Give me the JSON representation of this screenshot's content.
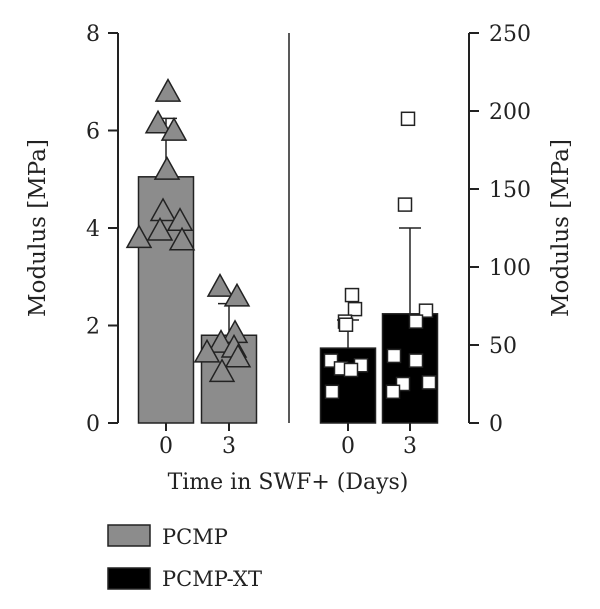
{
  "chart_data": {
    "type": "bar",
    "xlabel": "Time in SWF+ (Days)",
    "left_axis": {
      "label": "Modulus [MPa]",
      "ylim": [
        0,
        8
      ],
      "ticks": [
        "0",
        "2",
        "4",
        "6",
        "8"
      ]
    },
    "right_axis": {
      "label": "Modulus [MPa]",
      "ylim": [
        0,
        250
      ],
      "ticks": [
        "0",
        "50",
        "100",
        "150",
        "200",
        "250"
      ]
    },
    "legend": {
      "placement": "bottom-left",
      "entries": [
        {
          "label": "PCMP",
          "color": "#8c8c8c"
        },
        {
          "label": "PCMP-XT",
          "color": "#000000"
        }
      ]
    },
    "groups": [
      {
        "series": "PCMP",
        "axis": "left",
        "color": "#8c8c8c",
        "marker": "triangle",
        "bars": [
          {
            "category": "0",
            "mean": 5.05,
            "error": 1.2,
            "points": [
              6.8,
              6.15,
              6.0,
              5.2,
              4.35,
              4.15,
              3.95,
              3.8,
              3.75
            ]
          },
          {
            "category": "3",
            "mean": 1.8,
            "error": 0.65,
            "points": [
              2.8,
              2.6,
              1.85,
              1.65,
              1.55,
              1.45,
              1.35,
              1.05
            ]
          }
        ]
      },
      {
        "series": "PCMP-XT",
        "axis": "right",
        "color": "#000000",
        "marker": "square",
        "bars": [
          {
            "category": "0",
            "mean": 48,
            "error": 18,
            "points": [
              82,
              73,
              65,
              63,
              40,
              37,
              35,
              34,
              20
            ]
          },
          {
            "category": "3",
            "mean": 70,
            "error": 55,
            "points": [
              195,
              140,
              72,
              65,
              43,
              40,
              26,
              25,
              20
            ]
          }
        ]
      }
    ]
  }
}
